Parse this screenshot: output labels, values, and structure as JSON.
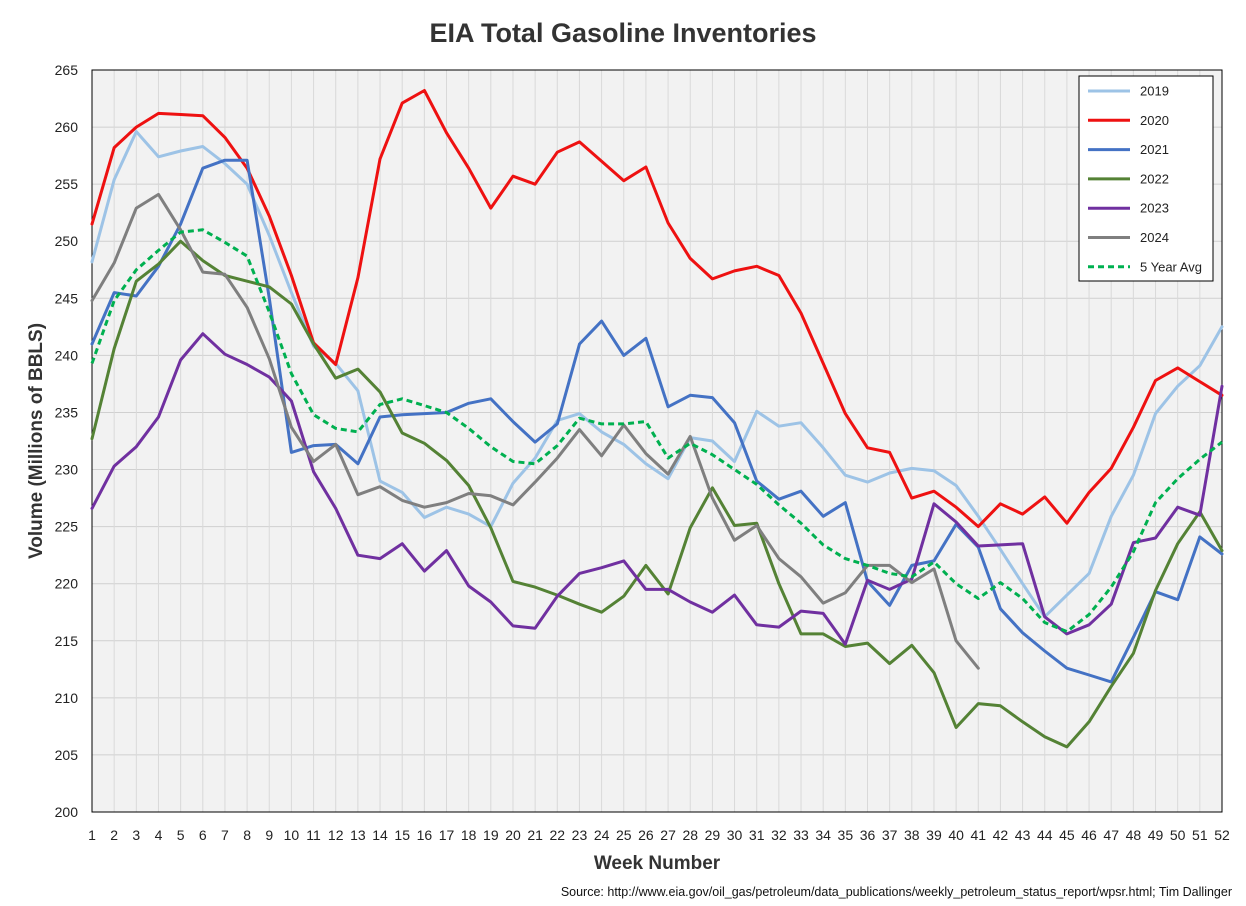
{
  "chart_data": {
    "type": "line",
    "title": "EIA Total Gasoline Inventories",
    "xlabel": "Week Number",
    "ylabel": "Volume (Millions of BBLS)",
    "source": "Source: http://www.eia.gov/oil_gas/petroleum/data_publications/weekly_petroleum_status_report/wpsr.html; Tim Dallinger",
    "ylim": [
      200,
      265
    ],
    "yticks": [
      200,
      205,
      210,
      215,
      220,
      225,
      230,
      235,
      240,
      245,
      250,
      255,
      260,
      265
    ],
    "xlim": [
      1,
      52
    ],
    "x": [
      1,
      2,
      3,
      4,
      5,
      6,
      7,
      8,
      9,
      10,
      11,
      12,
      13,
      14,
      15,
      16,
      17,
      18,
      19,
      20,
      21,
      22,
      23,
      24,
      25,
      26,
      27,
      28,
      29,
      30,
      31,
      32,
      33,
      34,
      35,
      36,
      37,
      38,
      39,
      40,
      41,
      42,
      43,
      44,
      45,
      46,
      47,
      48,
      49,
      50,
      51,
      52
    ],
    "grid": true,
    "legend_position": "top-right",
    "series": [
      {
        "name": "2019",
        "color": "#9dc3e6",
        "dashed": false,
        "values": [
          248.2,
          255.4,
          259.6,
          257.4,
          257.9,
          258.3,
          256.8,
          255.0,
          250.5,
          245.5,
          240.8,
          239.3,
          236.9,
          229.0,
          228.0,
          225.8,
          226.7,
          226.1,
          225.0,
          228.8,
          231.0,
          234.3,
          234.9,
          233.3,
          232.2,
          230.5,
          229.2,
          232.8,
          232.5,
          230.7,
          235.1,
          233.8,
          234.1,
          231.9,
          229.5,
          228.9,
          229.7,
          230.1,
          229.9,
          228.6,
          225.9,
          223.0,
          220.0,
          217.1,
          219.0,
          220.9,
          225.9,
          229.5,
          234.9,
          237.3,
          239.1,
          242.5
        ]
      },
      {
        "name": "2020",
        "color": "#ee1111",
        "dashed": false,
        "values": [
          251.5,
          258.2,
          260.0,
          261.2,
          261.1,
          261.0,
          259.1,
          256.4,
          252.2,
          247.0,
          241.1,
          239.2,
          246.8,
          257.2,
          262.1,
          263.2,
          259.5,
          256.4,
          252.9,
          255.7,
          255.0,
          257.8,
          258.7,
          257.0,
          255.3,
          256.5,
          251.6,
          248.5,
          246.7,
          247.4,
          247.8,
          247.0,
          243.7,
          239.3,
          234.9,
          231.9,
          231.5,
          227.5,
          228.1,
          226.7,
          225.0,
          227.0,
          226.1,
          227.6,
          225.3,
          228.0,
          230.1,
          233.7,
          237.8,
          238.9,
          237.7,
          236.5
        ]
      },
      {
        "name": "2021",
        "color": "#4472c4",
        "dashed": false,
        "values": [
          241.0,
          245.5,
          245.2,
          247.8,
          251.5,
          256.4,
          257.1,
          257.1,
          245.0,
          231.5,
          232.1,
          232.2,
          230.5,
          234.6,
          234.8,
          234.9,
          235.0,
          235.8,
          236.2,
          234.2,
          232.4,
          234.0,
          241.0,
          243.0,
          240.0,
          241.5,
          235.5,
          236.5,
          236.3,
          234.1,
          229.0,
          227.4,
          228.1,
          225.9,
          227.1,
          220.2,
          218.1,
          221.6,
          222.0,
          225.2,
          223.2,
          217.8,
          215.7,
          214.1,
          212.6,
          212.0,
          211.4,
          215.3,
          219.3,
          218.6,
          224.1,
          222.6
        ]
      },
      {
        "name": "2022",
        "color": "#548235",
        "dashed": false,
        "values": [
          232.7,
          240.6,
          246.5,
          248.0,
          250.0,
          248.3,
          247.0,
          246.5,
          246.0,
          244.5,
          241.0,
          238.0,
          238.8,
          236.8,
          233.2,
          232.3,
          230.8,
          228.6,
          224.9,
          220.2,
          219.7,
          219.0,
          218.2,
          217.5,
          218.9,
          221.6,
          219.1,
          224.9,
          228.4,
          225.1,
          225.3,
          220.0,
          215.6,
          215.6,
          214.5,
          214.8,
          213.0,
          214.6,
          212.2,
          207.4,
          209.5,
          209.3,
          207.9,
          206.6,
          205.7,
          207.9,
          211.0,
          213.9,
          219.4,
          223.5,
          226.3,
          222.9
        ]
      },
      {
        "name": "2023",
        "color": "#7030a0",
        "dashed": false,
        "values": [
          226.6,
          230.3,
          232.0,
          234.6,
          239.6,
          241.9,
          240.1,
          239.2,
          238.1,
          236.0,
          229.8,
          226.6,
          222.5,
          222.2,
          223.5,
          221.1,
          222.9,
          219.8,
          218.4,
          216.3,
          216.1,
          218.9,
          220.9,
          221.4,
          222.0,
          219.5,
          219.5,
          218.4,
          217.5,
          219.0,
          216.4,
          216.2,
          217.6,
          217.4,
          214.7,
          220.3,
          219.5,
          220.4,
          227.0,
          225.4,
          223.3,
          223.4,
          223.5,
          217.1,
          215.6,
          216.4,
          218.2,
          223.6,
          224.0,
          226.7,
          226.0,
          237.3
        ]
      },
      {
        "name": "2024",
        "color": "#7f7f7f",
        "dashed": false,
        "values": [
          244.8,
          248.1,
          252.9,
          254.1,
          251.0,
          247.3,
          247.1,
          244.2,
          239.7,
          233.7,
          230.7,
          232.2,
          227.8,
          228.5,
          227.3,
          226.7,
          227.1,
          227.9,
          227.7,
          226.9,
          228.9,
          231.0,
          233.5,
          231.2,
          233.9,
          231.4,
          229.6,
          232.9,
          227.5,
          223.8,
          225.1,
          222.2,
          220.6,
          218.3,
          219.2,
          221.6,
          221.6,
          220.1,
          221.3,
          215.0,
          212.6,
          null,
          null,
          null,
          null,
          null,
          null,
          null,
          null,
          null,
          null,
          null
        ]
      },
      {
        "name": "5 Year Avg",
        "color": "#00b050",
        "dashed": true,
        "values": [
          239.3,
          244.8,
          247.5,
          249.2,
          250.8,
          251.0,
          249.9,
          248.7,
          243.8,
          238.4,
          234.8,
          233.6,
          233.3,
          235.7,
          236.2,
          235.6,
          235.0,
          233.6,
          232.0,
          230.7,
          230.5,
          232.1,
          234.5,
          234.0,
          234.0,
          234.2,
          231.0,
          232.3,
          231.3,
          230.0,
          228.7,
          226.9,
          225.3,
          223.4,
          222.2,
          221.6,
          220.9,
          220.6,
          221.9,
          220.0,
          218.7,
          220.1,
          218.7,
          216.6,
          215.8,
          217.3,
          219.7,
          222.8,
          227.1,
          229.2,
          230.9,
          232.4
        ]
      }
    ]
  }
}
